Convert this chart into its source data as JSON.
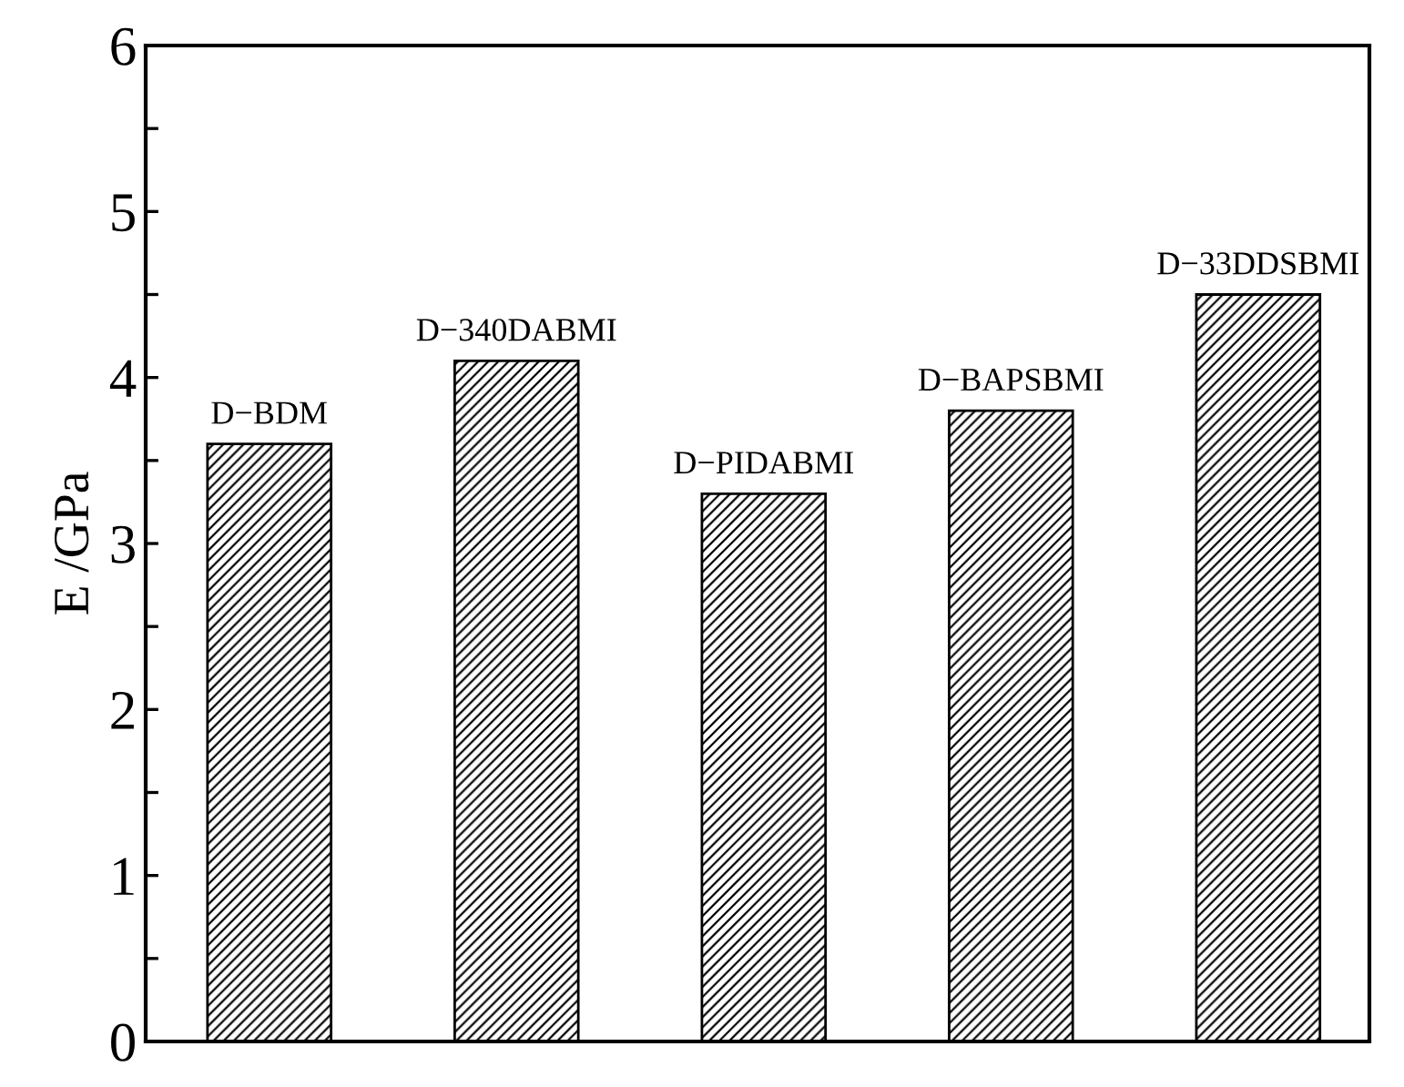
{
  "chart_data": {
    "type": "bar",
    "ylabel": "E /GPa",
    "categories": [
      "D−BDM",
      "D−340DABMI",
      "D−PIDABMI",
      "D−BAPSBMI",
      "D−33DDSBMI"
    ],
    "values": [
      3.6,
      4.1,
      3.3,
      3.8,
      4.5
    ],
    "color": "#000000",
    "ylim": [
      0,
      6
    ],
    "yticks": [
      0,
      {
        "value": 0.5,
        "label": null
      },
      1,
      {
        "value": 1.5,
        "label": null
      },
      2,
      {
        "value": 2.5,
        "label": null
      },
      3,
      {
        "value": 3.5,
        "label": null
      },
      4,
      {
        "value": 4.5,
        "label": null
      },
      5,
      {
        "value": 5.5,
        "label": null
      },
      6
    ],
    "grid": false,
    "legend": false
  }
}
